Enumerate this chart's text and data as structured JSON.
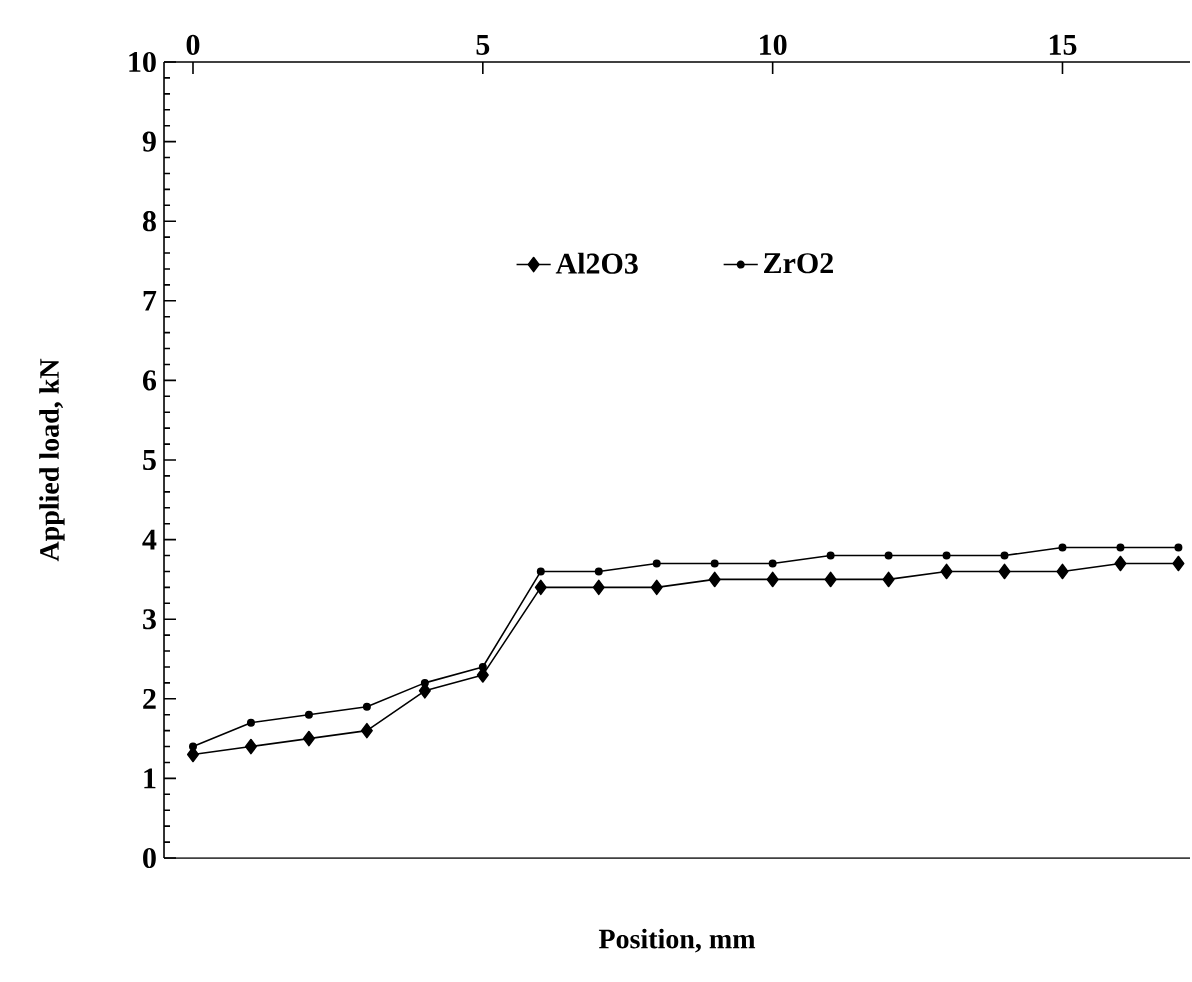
{
  "chart_data": {
    "type": "line",
    "xlabel": "Position, mm",
    "ylabel": "Applied load, kN",
    "x": [
      0,
      1,
      2,
      3,
      4,
      5,
      6,
      7,
      8,
      9,
      10,
      11,
      12,
      13,
      14,
      15,
      16,
      17
    ],
    "xlim": [
      -0.5,
      17.2
    ],
    "xticks": [
      0,
      5,
      10,
      15
    ],
    "ylim": [
      0,
      10
    ],
    "yticks": [
      0,
      1,
      2,
      3,
      4,
      5,
      6,
      7,
      8,
      9,
      10
    ],
    "legend": "top",
    "tick_labels": "xy",
    "series": [
      {
        "name": "Al2O3",
        "color": "#000000",
        "marker": "diamond",
        "values": [
          1.3,
          1.4,
          1.5,
          1.6,
          2.1,
          2.3,
          3.4,
          3.4,
          3.4,
          3.5,
          3.5,
          3.5,
          3.5,
          3.6,
          3.6,
          3.6,
          3.7,
          3.7
        ]
      },
      {
        "name": "ZrO2",
        "color": "#000000",
        "marker": "circle",
        "values": [
          1.4,
          1.7,
          1.8,
          1.9,
          2.2,
          2.4,
          3.6,
          3.6,
          3.7,
          3.7,
          3.7,
          3.8,
          3.8,
          3.8,
          3.8,
          3.9,
          3.9,
          3.9
        ]
      }
    ]
  }
}
